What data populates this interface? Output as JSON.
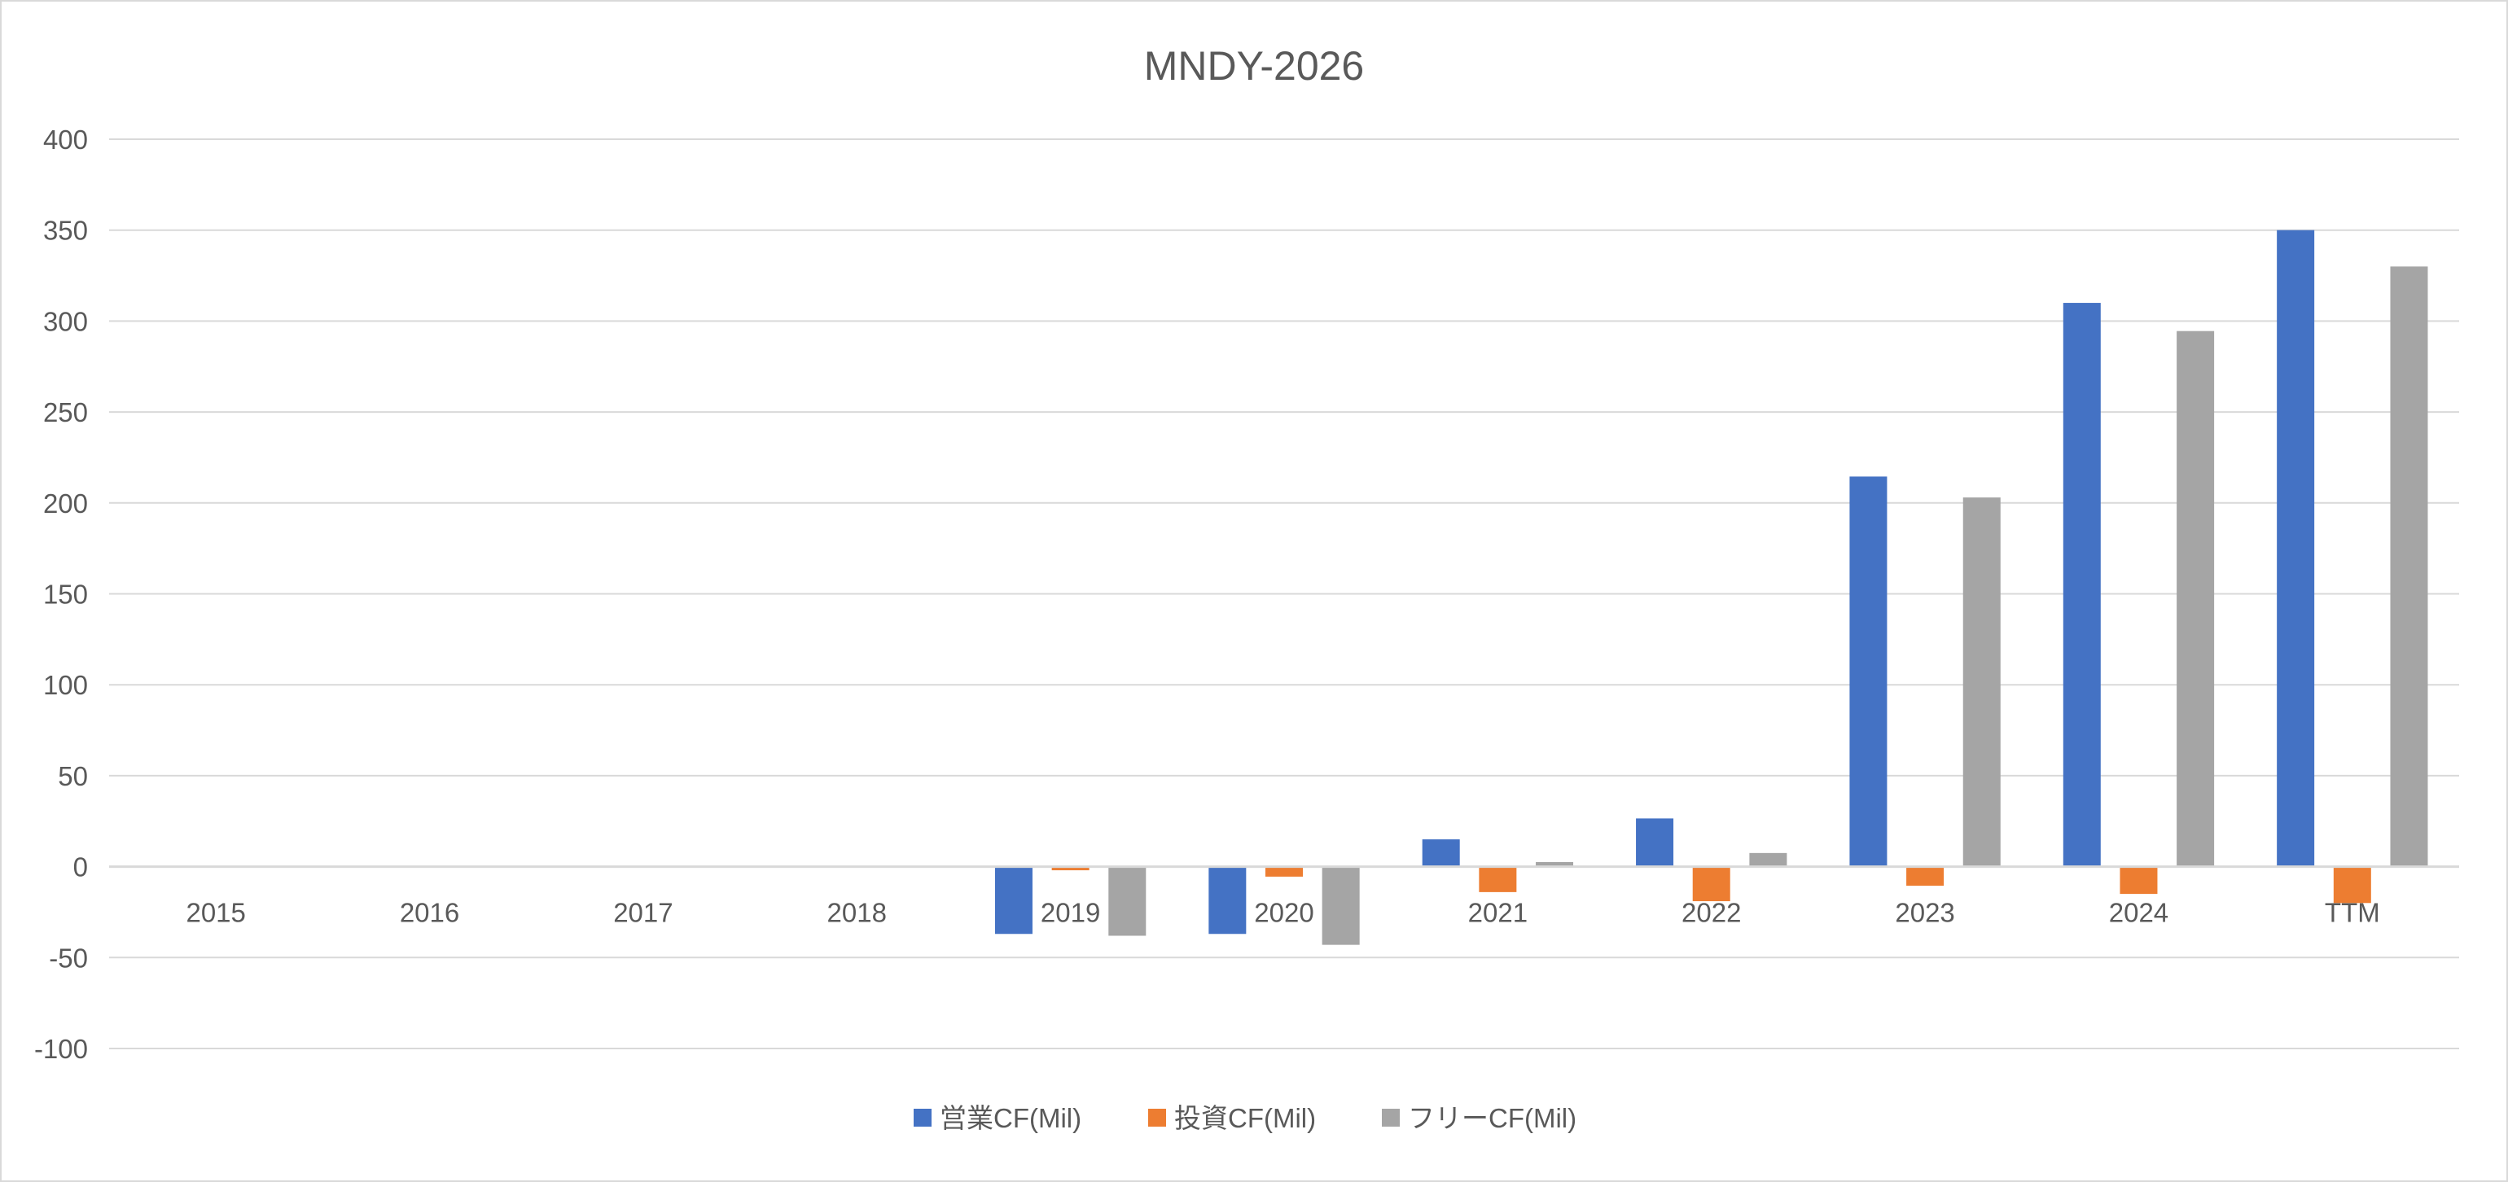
{
  "chart_data": {
    "type": "bar",
    "title": "MNDY-2026",
    "xlabel": "",
    "ylabel": "",
    "ylim": [
      -100,
      400
    ],
    "yticks": [
      -100,
      -50,
      0,
      50,
      100,
      150,
      200,
      250,
      300,
      350,
      400
    ],
    "grid": true,
    "legend_position": "bottom",
    "categories": [
      "2015",
      "2016",
      "2017",
      "2018",
      "2019",
      "2020",
      "2021",
      "2022",
      "2023",
      "2024",
      "TTM"
    ],
    "series": [
      {
        "name": "営業CF(Mil)",
        "color": "#4472C4",
        "values": [
          null,
          null,
          null,
          null,
          -37,
          -37,
          15,
          26.5,
          214.5,
          310,
          350
        ]
      },
      {
        "name": "投資CF(Mil)",
        "color": "#ED7D31",
        "values": [
          null,
          null,
          null,
          null,
          -2,
          -5.5,
          -14,
          -19,
          -10.5,
          -15,
          -20
        ]
      },
      {
        "name": "フリーCF(Mil)",
        "color": "#A5A5A5",
        "values": [
          null,
          null,
          null,
          null,
          -38,
          -43,
          2.5,
          7.5,
          203,
          294.5,
          330
        ]
      }
    ]
  }
}
